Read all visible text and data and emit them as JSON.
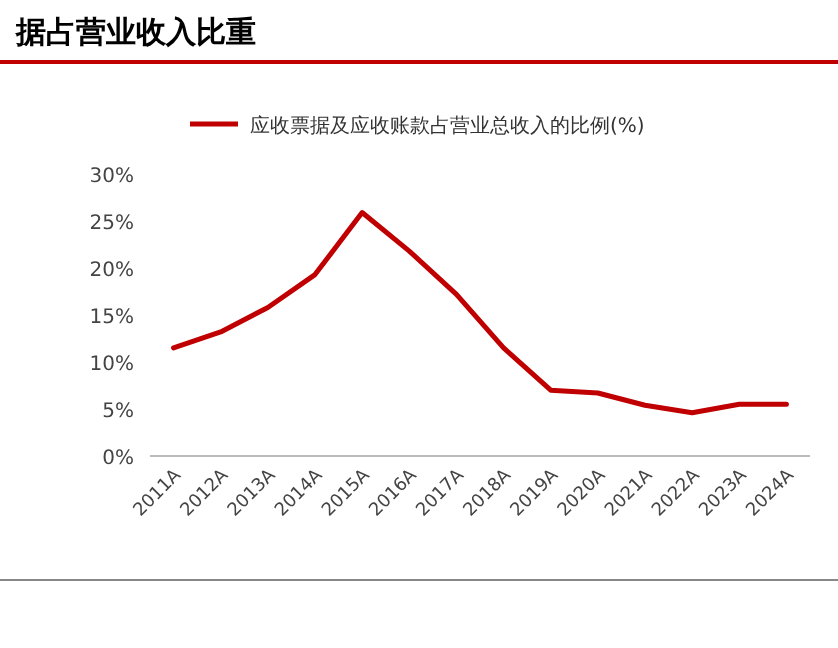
{
  "chart_data": {
    "type": "line",
    "title": "据占营业收入比重",
    "categories": [
      "2011A",
      "2012A",
      "2013A",
      "2014A",
      "2015A",
      "2016A",
      "2017A",
      "2018A",
      "2019A",
      "2020A",
      "2021A",
      "2022A",
      "2023A",
      "2024A"
    ],
    "series": [
      {
        "name": "应收票据及应收账款占营业总收入的比例(%)",
        "color": "#c00000",
        "values": [
          11.5,
          13.2,
          15.8,
          19.3,
          25.9,
          21.8,
          17.2,
          11.5,
          7.0,
          6.7,
          5.4,
          4.6,
          5.5,
          5.5
        ]
      }
    ],
    "ylim": [
      0,
      30
    ],
    "yticks": [
      {
        "value": 0,
        "label": "0%"
      },
      {
        "value": 5,
        "label": "5%"
      },
      {
        "value": 10,
        "label": "10%"
      },
      {
        "value": 15,
        "label": "15%"
      },
      {
        "value": 20,
        "label": "20%"
      },
      {
        "value": 25,
        "label": "25%"
      },
      {
        "value": 30,
        "label": "30%"
      }
    ],
    "legend": "top",
    "grid": false,
    "marker": "none",
    "line_style": "solid"
  }
}
